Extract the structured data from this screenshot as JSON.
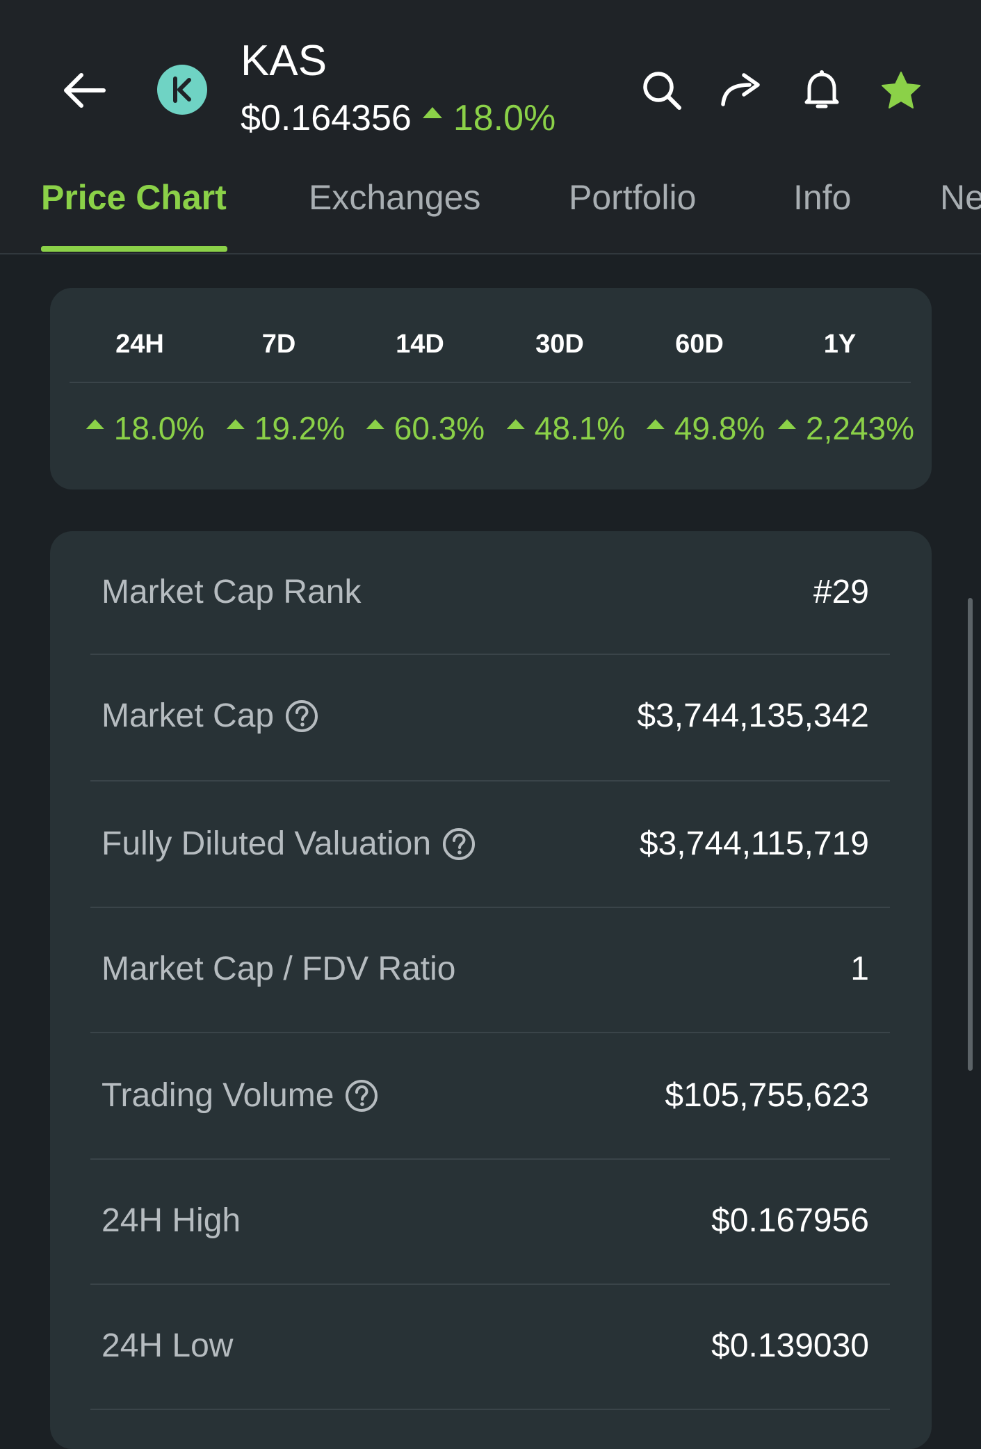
{
  "header": {
    "symbol": "KAS",
    "price": "$0.164356",
    "change": "18.0%",
    "colors": {
      "up": "#8bd148",
      "logo": "#6fd3c4"
    },
    "icons": [
      "back-arrow-icon",
      "kaspa-logo-icon",
      "search-icon",
      "share-icon",
      "bell-icon",
      "star-icon"
    ]
  },
  "tabs": [
    {
      "label": "Price Chart",
      "active": true
    },
    {
      "label": "Exchanges"
    },
    {
      "label": "Portfolio"
    },
    {
      "label": "Info"
    },
    {
      "label": "Ne"
    }
  ],
  "periods": [
    {
      "label": "24H",
      "change": "18.0%"
    },
    {
      "label": "7D",
      "change": "19.2%"
    },
    {
      "label": "14D",
      "change": "60.3%"
    },
    {
      "label": "30D",
      "change": "48.1%"
    },
    {
      "label": "60D",
      "change": "49.8%"
    },
    {
      "label": "1Y",
      "change": "2,243%"
    }
  ],
  "stats": [
    {
      "label": "Market Cap Rank",
      "value": "#29",
      "help": false
    },
    {
      "label": "Market Cap",
      "value": "$3,744,135,342",
      "help": true
    },
    {
      "label": "Fully Diluted Valuation",
      "value": "$3,744,115,719",
      "help": true
    },
    {
      "label": "Market Cap / FDV Ratio",
      "value": "1",
      "help": false
    },
    {
      "label": "Trading Volume",
      "value": "$105,755,623",
      "help": true
    },
    {
      "label": "24H High",
      "value": "$0.167956",
      "help": false
    },
    {
      "label": "24H Low",
      "value": "$0.139030",
      "help": false
    }
  ]
}
